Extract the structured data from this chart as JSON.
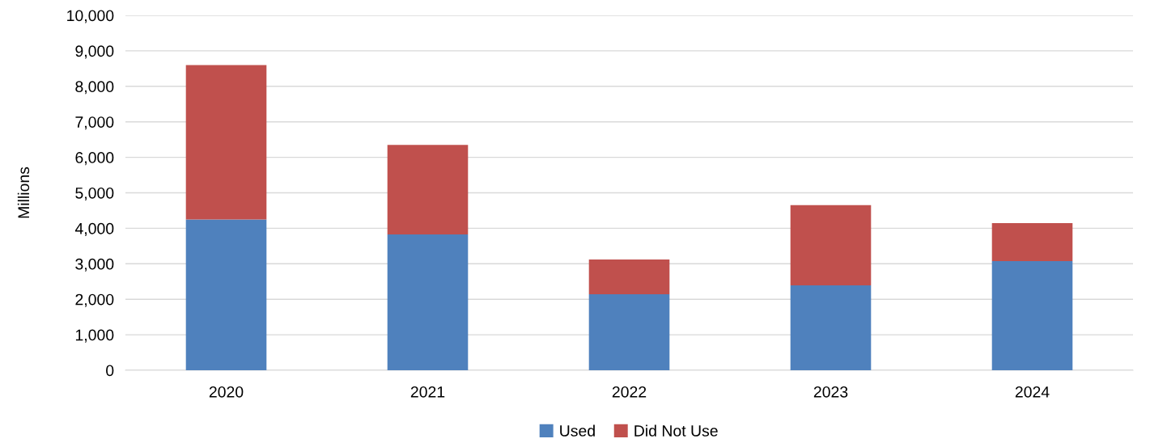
{
  "chart_data": {
    "type": "bar",
    "ylabel": "Millions",
    "stacked": true,
    "categories": [
      "2020",
      "2021",
      "2022",
      "2023",
      "2024"
    ],
    "series": [
      {
        "name": "Used",
        "color": "#4f81bd",
        "values": [
          4250,
          3825,
          2140,
          2390,
          3075
        ]
      },
      {
        "name": "Did Not Use",
        "color": "#c0504d",
        "values": [
          4350,
          2525,
          980,
          2260,
          1070
        ]
      }
    ],
    "ylim": [
      0,
      10000
    ],
    "yticks": [
      0,
      {
        "value": 1000,
        "label": "1,000"
      },
      {
        "value": 2000,
        "label": "2,000"
      },
      {
        "value": 3000,
        "label": "3,000"
      },
      {
        "value": 4000,
        "label": "4,000"
      },
      {
        "value": 5000,
        "label": "5,000"
      },
      {
        "value": 6000,
        "label": "6,000"
      },
      {
        "value": 7000,
        "label": "7,000"
      },
      {
        "value": 8000,
        "label": "8,000"
      },
      {
        "value": 9000,
        "label": "9,000"
      },
      {
        "value": 10000,
        "label": "10,000"
      }
    ],
    "grid": "y",
    "legend": "bottom"
  }
}
